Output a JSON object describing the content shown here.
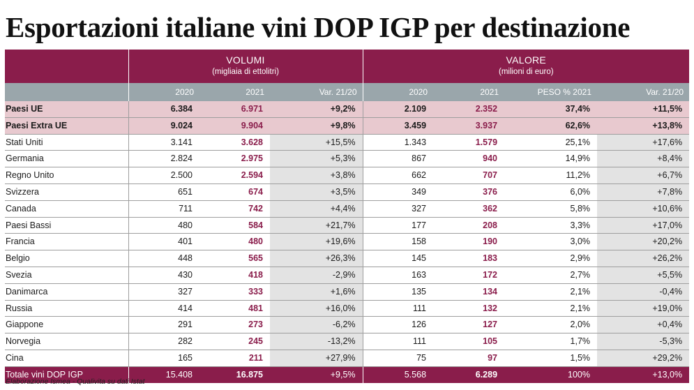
{
  "title": "Esportazioni italiane vini DOP IGP per destinazione",
  "chart_data": {
    "type": "table",
    "groups": [
      {
        "name": "VOLUMI",
        "unit": "(migliaia di ettolitri)"
      },
      {
        "name": "VALORE",
        "unit": "(milioni di euro)"
      }
    ],
    "columns": [
      "2020",
      "2021",
      "Var. 21/20",
      "2020",
      "2021",
      "PESO % 2021",
      "Var. 21/20"
    ],
    "aggregate_rows": [
      {
        "name": "Paesi UE",
        "cells": [
          "6.384",
          "6.971",
          "+9,2%",
          "2.109",
          "2.352",
          "37,4%",
          "+11,5%"
        ]
      },
      {
        "name": "Paesi Extra UE",
        "cells": [
          "9.024",
          "9.904",
          "+9,8%",
          "3.459",
          "3.937",
          "62,6%",
          "+13,8%"
        ]
      }
    ],
    "rows": [
      {
        "name": "Stati Uniti",
        "cells": [
          "3.141",
          "3.628",
          "+15,5%",
          "1.343",
          "1.579",
          "25,1%",
          "+17,6%"
        ]
      },
      {
        "name": "Germania",
        "cells": [
          "2.824",
          "2.975",
          "+5,3%",
          "867",
          "940",
          "14,9%",
          "+8,4%"
        ]
      },
      {
        "name": "Regno Unito",
        "cells": [
          "2.500",
          "2.594",
          "+3,8%",
          "662",
          "707",
          "11,2%",
          "+6,7%"
        ]
      },
      {
        "name": "Svizzera",
        "cells": [
          "651",
          "674",
          "+3,5%",
          "349",
          "376",
          "6,0%",
          "+7,8%"
        ]
      },
      {
        "name": "Canada",
        "cells": [
          "711",
          "742",
          "+4,4%",
          "327",
          "362",
          "5,8%",
          "+10,6%"
        ]
      },
      {
        "name": "Paesi Bassi",
        "cells": [
          "480",
          "584",
          "+21,7%",
          "177",
          "208",
          "3,3%",
          "+17,0%"
        ]
      },
      {
        "name": "Francia",
        "cells": [
          "401",
          "480",
          "+19,6%",
          "158",
          "190",
          "3,0%",
          "+20,2%"
        ]
      },
      {
        "name": "Belgio",
        "cells": [
          "448",
          "565",
          "+26,3%",
          "145",
          "183",
          "2,9%",
          "+26,2%"
        ]
      },
      {
        "name": "Svezia",
        "cells": [
          "430",
          "418",
          "-2,9%",
          "163",
          "172",
          "2,7%",
          "+5,5%"
        ]
      },
      {
        "name": "Danimarca",
        "cells": [
          "327",
          "333",
          "+1,6%",
          "135",
          "134",
          "2,1%",
          "-0,4%"
        ]
      },
      {
        "name": "Russia",
        "cells": [
          "414",
          "481",
          "+16,0%",
          "111",
          "132",
          "2,1%",
          "+19,0%"
        ]
      },
      {
        "name": "Giappone",
        "cells": [
          "291",
          "273",
          "-6,2%",
          "126",
          "127",
          "2,0%",
          "+0,4%"
        ]
      },
      {
        "name": "Norvegia",
        "cells": [
          "282",
          "245",
          "-13,2%",
          "111",
          "105",
          "1,7%",
          "-5,3%"
        ]
      },
      {
        "name": "Cina",
        "cells": [
          "165",
          "211",
          "+27,9%",
          "75",
          "97",
          "1,5%",
          "+29,2%"
        ]
      }
    ],
    "total_row": {
      "name": "Totale vini DOP IGP",
      "cells": [
        "15.408",
        "16.875",
        "+9,5%",
        "5.568",
        "6.289",
        "100%",
        "+13,0%"
      ]
    }
  },
  "source": "Elaborazione Ismea - Qualivita su dati Istat",
  "colors": {
    "accent": "#8a1d4b",
    "header_grey": "#9aa6ab",
    "aggregate_bg": "#e8c9cf",
    "variation_bg": "#e3e3e3"
  }
}
